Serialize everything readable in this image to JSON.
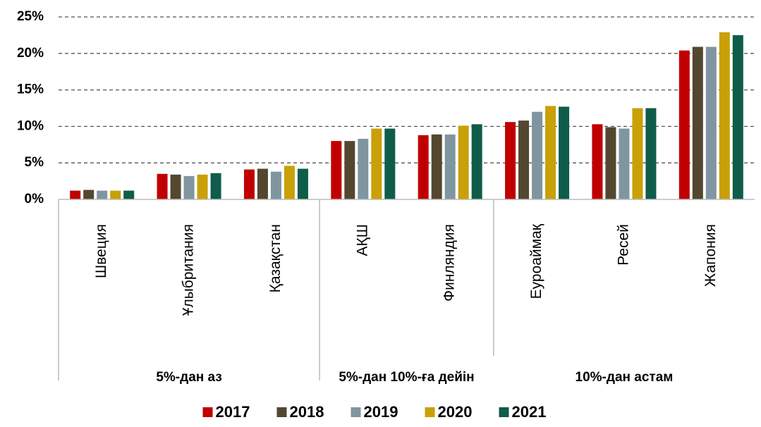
{
  "chart_data": {
    "type": "bar",
    "categories": [
      "Швеция",
      "Ұлыбритания",
      "Қазақстан",
      "АҚШ",
      "Финляндия",
      "Еуроаймақ",
      "Ресей",
      "Жапония"
    ],
    "groups": [
      {
        "label": "5%-дан аз",
        "categories": [
          0,
          2
        ]
      },
      {
        "label": "5%-дан 10%-ға дейін",
        "categories": [
          3,
          4
        ]
      },
      {
        "label": "10%-дан астам",
        "categories": [
          5,
          7
        ]
      }
    ],
    "series": [
      {
        "name": "2017",
        "color": "#c00000",
        "values": [
          1.2,
          3.5,
          4.1,
          8.0,
          8.8,
          10.6,
          10.3,
          20.4
        ]
      },
      {
        "name": "2018",
        "color": "#54472f",
        "values": [
          1.3,
          3.4,
          4.2,
          8.0,
          8.9,
          10.8,
          9.9,
          20.9
        ]
      },
      {
        "name": "2019",
        "color": "#7f96a0",
        "values": [
          1.2,
          3.2,
          3.8,
          8.3,
          8.9,
          12.0,
          9.7,
          20.9
        ]
      },
      {
        "name": "2020",
        "color": "#c9a008",
        "values": [
          1.2,
          3.4,
          4.6,
          9.7,
          10.1,
          12.8,
          12.5,
          22.9
        ]
      },
      {
        "name": "2021",
        "color": "#0f5c4a",
        "values": [
          1.2,
          3.6,
          4.2,
          9.7,
          10.3,
          12.7,
          12.5,
          22.5
        ]
      }
    ],
    "ylim": [
      0,
      25
    ],
    "yticks": [
      {
        "value": 0,
        "label": "0%"
      },
      {
        "value": 5,
        "label": "5%"
      },
      {
        "value": 10,
        "label": "10%"
      },
      {
        "value": 15,
        "label": "15%"
      },
      {
        "value": 20,
        "label": "20%"
      },
      {
        "value": 25,
        "label": "25%"
      }
    ],
    "grid": true,
    "legend": "bottom"
  }
}
